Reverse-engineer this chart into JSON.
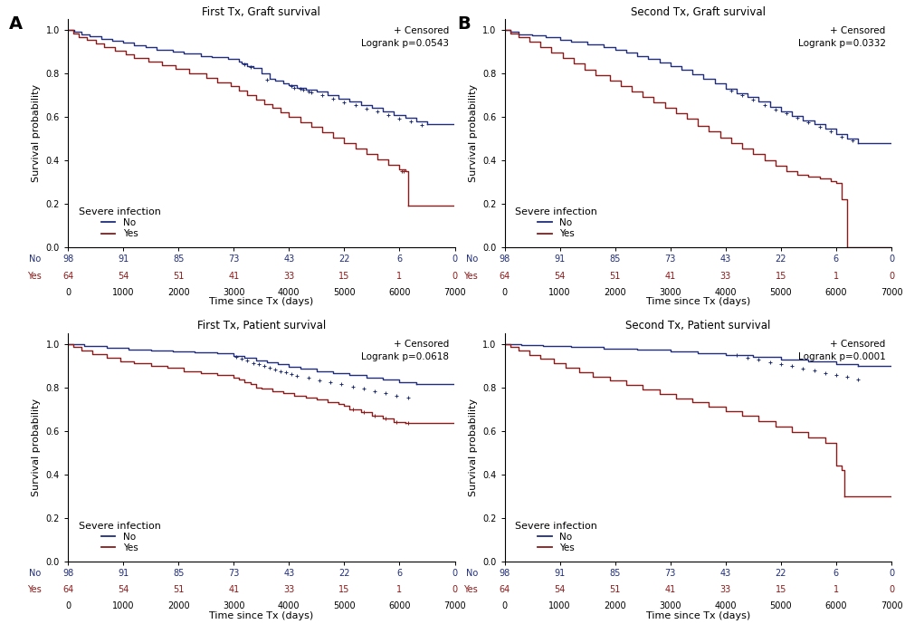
{
  "panels": [
    {
      "title": "First Tx, Graft survival",
      "logrank": "Logrank p=0.0543",
      "no_color": "#1f2d7b",
      "yes_color": "#8b1a1a",
      "ylabel": "Survival probability",
      "xlabel": "Time since Tx (days)",
      "at_risk_times": [
        0,
        1000,
        2000,
        3000,
        4000,
        5000,
        6000,
        7000
      ],
      "at_risk_no": [
        98,
        91,
        85,
        73,
        43,
        22,
        6,
        0
      ],
      "at_risk_yes": [
        64,
        54,
        51,
        41,
        33,
        15,
        1,
        0
      ],
      "no_t": [
        0,
        120,
        250,
        400,
        600,
        800,
        1000,
        1200,
        1400,
        1600,
        1900,
        2100,
        2400,
        2600,
        2900,
        3100,
        3150,
        3250,
        3350,
        3500,
        3650,
        3750,
        3900,
        4000,
        4150,
        4300,
        4500,
        4700,
        4900,
        5100,
        5300,
        5500,
        5700,
        5900,
        6100,
        6300,
        6500
      ],
      "no_s": [
        1.0,
        0.99,
        0.98,
        0.97,
        0.96,
        0.95,
        0.94,
        0.93,
        0.92,
        0.91,
        0.9,
        0.89,
        0.88,
        0.875,
        0.865,
        0.855,
        0.845,
        0.835,
        0.825,
        0.8,
        0.775,
        0.765,
        0.755,
        0.745,
        0.735,
        0.725,
        0.715,
        0.7,
        0.685,
        0.67,
        0.655,
        0.64,
        0.625,
        0.61,
        0.595,
        0.58,
        0.565
      ],
      "yes_t": [
        0,
        100,
        200,
        350,
        500,
        650,
        850,
        1050,
        1200,
        1450,
        1700,
        1950,
        2200,
        2500,
        2700,
        2950,
        3100,
        3250,
        3400,
        3550,
        3700,
        3850,
        4000,
        4200,
        4400,
        4600,
        4800,
        5000,
        5200,
        5400,
        5600,
        5800,
        6000,
        6100,
        6150
      ],
      "yes_s": [
        1.0,
        0.985,
        0.968,
        0.953,
        0.937,
        0.92,
        0.905,
        0.888,
        0.87,
        0.855,
        0.838,
        0.82,
        0.8,
        0.78,
        0.76,
        0.74,
        0.72,
        0.7,
        0.68,
        0.66,
        0.64,
        0.62,
        0.6,
        0.575,
        0.553,
        0.53,
        0.505,
        0.48,
        0.455,
        0.43,
        0.405,
        0.38,
        0.36,
        0.35,
        0.19
      ],
      "no_cens_t": [
        3200,
        3300,
        3600,
        4050,
        4100,
        4200,
        4250,
        4350,
        4400,
        4600,
        4800,
        5000,
        5200,
        5400,
        5600,
        5800,
        6000,
        6200,
        6400
      ],
      "no_cens_s": [
        0.84,
        0.83,
        0.77,
        0.74,
        0.733,
        0.728,
        0.723,
        0.718,
        0.713,
        0.698,
        0.683,
        0.668,
        0.653,
        0.638,
        0.623,
        0.608,
        0.593,
        0.578,
        0.563
      ],
      "yes_cens_t": [
        6050,
        6075
      ],
      "yes_cens_s": [
        0.35,
        0.35
      ]
    },
    {
      "title": "Second Tx, Graft survival",
      "logrank": "Logrank p=0.0332",
      "no_color": "#1f2d7b",
      "yes_color": "#8b1a1a",
      "ylabel": "Survival probability",
      "xlabel": "Time since Tx (days)",
      "at_risk_times": [
        0,
        1000,
        2000,
        3000,
        4000,
        5000,
        6000,
        7000
      ],
      "at_risk_no": [
        98,
        91,
        85,
        73,
        43,
        22,
        6,
        0
      ],
      "at_risk_yes": [
        64,
        54,
        51,
        41,
        33,
        15,
        1,
        0
      ],
      "no_t": [
        0,
        100,
        250,
        500,
        750,
        1000,
        1200,
        1500,
        1800,
        2000,
        2200,
        2400,
        2600,
        2800,
        3000,
        3200,
        3400,
        3600,
        3800,
        4000,
        4200,
        4400,
        4600,
        4800,
        5000,
        5200,
        5400,
        5600,
        5800,
        6000,
        6200,
        6400
      ],
      "no_s": [
        1.0,
        0.99,
        0.98,
        0.975,
        0.965,
        0.955,
        0.945,
        0.935,
        0.92,
        0.91,
        0.895,
        0.88,
        0.865,
        0.85,
        0.835,
        0.815,
        0.795,
        0.775,
        0.755,
        0.73,
        0.71,
        0.69,
        0.67,
        0.645,
        0.625,
        0.605,
        0.585,
        0.565,
        0.545,
        0.52,
        0.5,
        0.48
      ],
      "yes_t": [
        0,
        100,
        250,
        450,
        650,
        850,
        1050,
        1250,
        1450,
        1650,
        1900,
        2100,
        2300,
        2500,
        2700,
        2900,
        3100,
        3300,
        3500,
        3700,
        3900,
        4100,
        4300,
        4500,
        4700,
        4900,
        5100,
        5300,
        5500,
        5700,
        5900,
        6000,
        6100,
        6200
      ],
      "yes_s": [
        1.0,
        0.985,
        0.965,
        0.945,
        0.92,
        0.895,
        0.87,
        0.845,
        0.815,
        0.79,
        0.765,
        0.74,
        0.715,
        0.69,
        0.665,
        0.64,
        0.615,
        0.59,
        0.56,
        0.535,
        0.505,
        0.48,
        0.455,
        0.43,
        0.4,
        0.375,
        0.35,
        0.335,
        0.325,
        0.315,
        0.305,
        0.295,
        0.22,
        0.0
      ],
      "no_cens_t": [
        4100,
        4300,
        4500,
        4700,
        4900,
        5100,
        5300,
        5500,
        5700,
        5900,
        6100,
        6300
      ],
      "no_cens_s": [
        0.72,
        0.7,
        0.68,
        0.655,
        0.635,
        0.615,
        0.595,
        0.575,
        0.555,
        0.535,
        0.51,
        0.49
      ],
      "yes_cens_t": [],
      "yes_cens_s": []
    },
    {
      "title": "First Tx, Patient survival",
      "logrank": "Logrank p=0.0618",
      "no_color": "#1f2d7b",
      "yes_color": "#8b1a1a",
      "ylabel": "Survival probability",
      "xlabel": "Time since Tx (days)",
      "at_risk_times": [
        0,
        1000,
        2000,
        3000,
        4000,
        5000,
        6000,
        7000
      ],
      "at_risk_no": [
        98,
        91,
        85,
        73,
        43,
        22,
        6,
        0
      ],
      "at_risk_yes": [
        64,
        54,
        51,
        41,
        33,
        15,
        1,
        0
      ],
      "no_t": [
        0,
        300,
        700,
        1100,
        1500,
        1900,
        2300,
        2700,
        3000,
        3200,
        3400,
        3600,
        3800,
        4000,
        4200,
        4500,
        4800,
        5100,
        5400,
        5700,
        6000,
        6300
      ],
      "no_s": [
        1.0,
        0.99,
        0.98,
        0.975,
        0.97,
        0.965,
        0.96,
        0.955,
        0.945,
        0.935,
        0.925,
        0.915,
        0.905,
        0.895,
        0.885,
        0.875,
        0.865,
        0.855,
        0.845,
        0.835,
        0.825,
        0.815
      ],
      "yes_t": [
        0,
        100,
        250,
        450,
        700,
        950,
        1200,
        1500,
        1800,
        2100,
        2400,
        2700,
        3000,
        3100,
        3200,
        3300,
        3400,
        3500,
        3700,
        3900,
        4100,
        4300,
        4500,
        4700,
        4900,
        5000,
        5100,
        5300,
        5500,
        5700,
        5900,
        6100
      ],
      "yes_s": [
        1.0,
        0.985,
        0.968,
        0.953,
        0.937,
        0.92,
        0.91,
        0.9,
        0.89,
        0.875,
        0.865,
        0.855,
        0.843,
        0.835,
        0.825,
        0.815,
        0.8,
        0.793,
        0.783,
        0.773,
        0.762,
        0.752,
        0.742,
        0.732,
        0.722,
        0.715,
        0.7,
        0.685,
        0.67,
        0.655,
        0.64,
        0.635
      ],
      "no_cens_t": [
        3050,
        3150,
        3250,
        3350,
        3450,
        3550,
        3650,
        3750,
        3850,
        3950,
        4050,
        4150,
        4350,
        4550,
        4750,
        4950,
        5150,
        5350,
        5550,
        5750,
        5950,
        6150
      ],
      "no_cens_s": [
        0.94,
        0.93,
        0.922,
        0.912,
        0.905,
        0.898,
        0.89,
        0.882,
        0.875,
        0.868,
        0.86,
        0.853,
        0.843,
        0.833,
        0.823,
        0.813,
        0.803,
        0.793,
        0.783,
        0.773,
        0.762,
        0.752
      ],
      "yes_cens_t": [
        5150,
        5350,
        5550,
        5750,
        5950,
        6150
      ],
      "yes_cens_s": [
        0.7,
        0.685,
        0.67,
        0.655,
        0.64,
        0.635
      ]
    },
    {
      "title": "Second Tx, Patient survival",
      "logrank": "Logrank p=0.0001",
      "no_color": "#1f2d7b",
      "yes_color": "#8b1a1a",
      "ylabel": "Survival probability",
      "xlabel": "Time since Tx (days)",
      "at_risk_times": [
        0,
        1000,
        2000,
        3000,
        4000,
        5000,
        6000,
        7000
      ],
      "at_risk_no": [
        98,
        91,
        85,
        73,
        43,
        22,
        6,
        0
      ],
      "at_risk_yes": [
        64,
        54,
        51,
        41,
        33,
        15,
        1,
        0
      ],
      "no_t": [
        0,
        300,
        700,
        1200,
        1800,
        2400,
        3000,
        3500,
        4000,
        4500,
        5000,
        5500,
        6000,
        6400
      ],
      "no_s": [
        1.0,
        0.995,
        0.99,
        0.985,
        0.978,
        0.972,
        0.964,
        0.956,
        0.948,
        0.938,
        0.928,
        0.918,
        0.908,
        0.898
      ],
      "yes_t": [
        0,
        100,
        250,
        450,
        650,
        900,
        1100,
        1350,
        1600,
        1900,
        2200,
        2500,
        2800,
        3100,
        3400,
        3700,
        4000,
        4300,
        4600,
        4900,
        5200,
        5500,
        5800,
        6000,
        6100,
        6150
      ],
      "yes_s": [
        1.0,
        0.985,
        0.968,
        0.95,
        0.932,
        0.91,
        0.89,
        0.87,
        0.85,
        0.83,
        0.81,
        0.79,
        0.77,
        0.75,
        0.73,
        0.71,
        0.69,
        0.67,
        0.645,
        0.62,
        0.595,
        0.57,
        0.545,
        0.44,
        0.42,
        0.3
      ],
      "no_cens_t": [
        4200,
        4400,
        4600,
        4800,
        5000,
        5200,
        5400,
        5600,
        5800,
        6000,
        6200,
        6400
      ],
      "no_cens_s": [
        0.946,
        0.936,
        0.926,
        0.916,
        0.906,
        0.896,
        0.886,
        0.876,
        0.866,
        0.856,
        0.846,
        0.836
      ],
      "yes_cens_t": [],
      "yes_cens_s": []
    }
  ],
  "bg_color": "#ffffff",
  "line_width": 1.0,
  "tick_fontsize": 7,
  "label_fontsize": 8,
  "title_fontsize": 8.5,
  "legend_title_fontsize": 8,
  "legend_fontsize": 7.5,
  "at_risk_fontsize": 7,
  "annot_fontsize": 7.5
}
